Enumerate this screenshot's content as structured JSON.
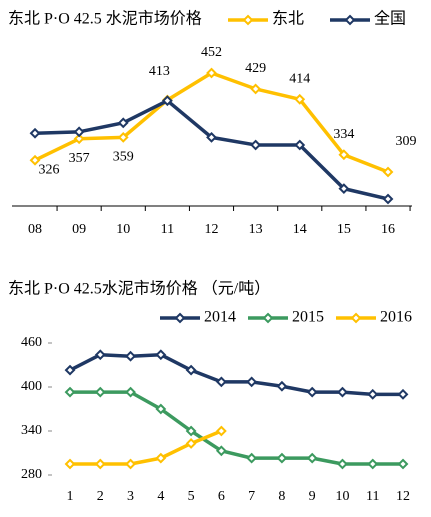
{
  "chart_data": [
    {
      "type": "line",
      "title": "东北 P·O 42.5 水泥市场价格",
      "categories": [
        "08",
        "09",
        "10",
        "11",
        "12",
        "13",
        "14",
        "15",
        "16"
      ],
      "series": [
        {
          "name": "东北",
          "color": "#FFC000",
          "values": [
            326,
            357,
            359,
            413,
            452,
            429,
            414,
            334,
            309
          ]
        },
        {
          "name": "全国",
          "color": "#1F3864",
          "values": [
            365,
            367,
            380,
            412,
            359,
            348,
            348,
            285,
            270
          ]
        }
      ]
    },
    {
      "type": "line",
      "title": "东北 P·O 42.5水泥市场价格 （元/吨）",
      "categories": [
        "1",
        "2",
        "3",
        "4",
        "5",
        "6",
        "7",
        "8",
        "9",
        "10",
        "11",
        "12"
      ],
      "series": [
        {
          "name": "2014",
          "color": "#1F3864",
          "values": [
            423,
            444,
            442,
            444,
            423,
            407,
            407,
            401,
            393,
            393,
            390,
            390
          ]
        },
        {
          "name": "2015",
          "color": "#3C9A5F",
          "values": [
            393,
            393,
            393,
            370,
            340,
            313,
            303,
            303,
            303,
            295,
            295,
            295
          ]
        },
        {
          "name": "2016",
          "color": "#FFC000",
          "values": [
            295,
            295,
            295,
            303,
            323,
            340,
            null,
            null,
            null,
            null,
            null,
            null
          ]
        }
      ],
      "ylim": [
        280,
        460
      ],
      "yticks": [
        280,
        340,
        400,
        460
      ]
    }
  ]
}
